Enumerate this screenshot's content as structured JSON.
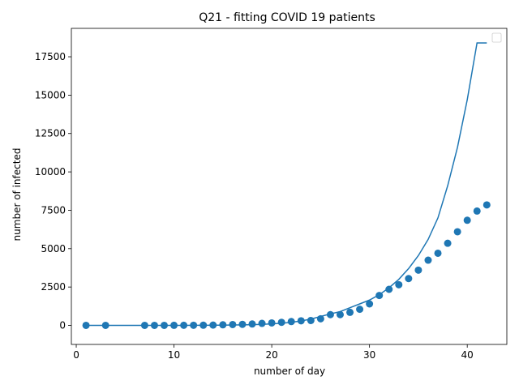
{
  "chart_data": {
    "type": "scatter",
    "title": "Q21 - fitting COVID 19 patients",
    "xlabel": "number of day",
    "ylabel": "number of infected",
    "xlim": [
      -0.5,
      44.05
    ],
    "ylim": [
      -1240,
      19350
    ],
    "x_ticks": [
      0,
      10,
      20,
      30,
      40
    ],
    "y_ticks": [
      0,
      2500,
      5000,
      7500,
      10000,
      12500,
      15000,
      17500
    ],
    "grid": false,
    "legend": "top-right, empty",
    "color": "#1f77b4",
    "series": [
      {
        "kind": "points",
        "x": [
          1,
          3,
          7,
          8,
          9,
          10,
          11,
          12,
          13,
          14,
          15,
          16,
          17,
          18,
          19,
          20,
          21,
          22,
          23,
          24,
          25,
          26,
          27,
          28,
          29,
          30,
          31,
          32,
          33,
          34,
          35,
          36,
          37,
          38,
          39,
          40,
          41,
          42
        ],
        "y": [
          1,
          1,
          2,
          2,
          3,
          5,
          7,
          9,
          13,
          20,
          40,
          55,
          70,
          90,
          130,
          160,
          200,
          250,
          300,
          320,
          430,
          700,
          700,
          850,
          1050,
          1400,
          1950,
          2350,
          2650,
          3050,
          3600,
          4250,
          4700,
          5350,
          6100,
          6850,
          7450,
          7850
        ]
      },
      {
        "kind": "fit-line",
        "x": [
          1,
          3,
          7,
          8,
          9,
          10,
          11,
          12,
          13,
          14,
          15,
          16,
          17,
          18,
          19,
          20,
          21,
          22,
          23,
          24,
          25,
          26,
          27,
          28,
          29,
          30,
          31,
          32,
          33,
          34,
          35,
          36,
          37,
          38,
          39,
          40,
          41,
          42
        ],
        "y": [
          0,
          0,
          1,
          1,
          2,
          3,
          4,
          6,
          8,
          12,
          17,
          24,
          34,
          49,
          70,
          100,
          140,
          200,
          290,
          410,
          580,
          750,
          900,
          1150,
          1400,
          1650,
          2000,
          2450,
          3000,
          3700,
          4550,
          5600,
          7000,
          9100,
          11600,
          14700,
          18400,
          18400
        ]
      }
    ]
  }
}
